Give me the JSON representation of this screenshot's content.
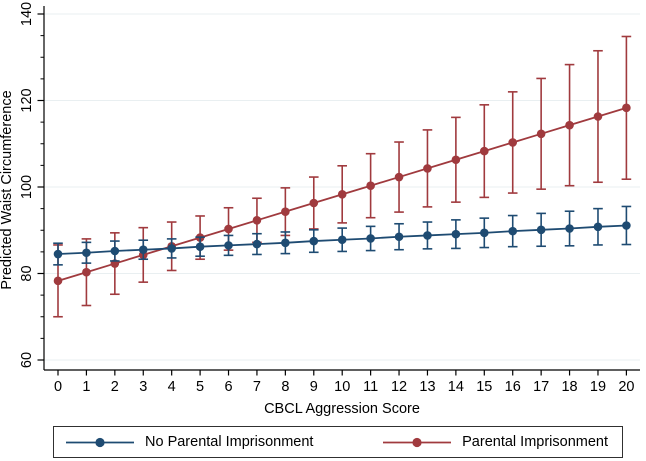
{
  "chart_data": {
    "type": "line",
    "title": "",
    "xlabel": "CBCL Aggression Score",
    "ylabel": "Predicted Waist Circumference",
    "x": [
      0,
      1,
      2,
      3,
      4,
      5,
      6,
      7,
      8,
      9,
      10,
      11,
      12,
      13,
      14,
      15,
      16,
      17,
      18,
      19,
      20
    ],
    "y_ticks": [
      60,
      80,
      100,
      120,
      140
    ],
    "y_minor_tick_step": 5,
    "ylim": [
      57.5,
      141.5
    ],
    "xlim": [
      -0.5,
      20.5
    ],
    "grid": "horizontal at major y ticks",
    "legend_position": "bottom boxed",
    "marker": "circle",
    "error_bars": "capped 95% CI",
    "series": [
      {
        "name": "No Parental Imprisonment",
        "color": "#1e4b72",
        "values": [
          84.5,
          84.8,
          85.2,
          85.5,
          85.8,
          86.2,
          86.5,
          86.8,
          87.1,
          87.5,
          87.8,
          88.1,
          88.5,
          88.8,
          89.1,
          89.4,
          89.8,
          90.1,
          90.4,
          90.8,
          91.1
        ],
        "ci_low": [
          82.0,
          82.4,
          82.9,
          83.3,
          83.6,
          84.0,
          84.2,
          84.4,
          84.6,
          84.9,
          85.1,
          85.3,
          85.5,
          85.7,
          85.8,
          86.0,
          86.2,
          86.3,
          86.4,
          86.6,
          86.7
        ],
        "ci_high": [
          87.0,
          87.2,
          87.5,
          87.7,
          88.0,
          88.4,
          88.8,
          89.2,
          89.6,
          90.1,
          90.5,
          90.9,
          91.5,
          91.9,
          92.4,
          92.8,
          93.4,
          93.9,
          94.4,
          95.0,
          95.5
        ]
      },
      {
        "name": "Parental Imprisonment",
        "color": "#a03a3e",
        "values": [
          78.3,
          80.3,
          82.3,
          84.3,
          86.3,
          88.3,
          90.3,
          92.3,
          94.3,
          96.3,
          98.3,
          100.3,
          102.3,
          104.3,
          106.3,
          108.3,
          110.3,
          112.3,
          114.3,
          116.3,
          118.3
        ],
        "ci_low": [
          70.0,
          72.6,
          75.2,
          78.0,
          80.7,
          83.3,
          85.4,
          87.2,
          88.8,
          90.3,
          91.7,
          92.9,
          94.2,
          95.4,
          96.5,
          97.6,
          98.6,
          99.5,
          100.3,
          101.1,
          101.8
        ],
        "ci_high": [
          86.6,
          88.0,
          89.4,
          90.6,
          91.9,
          93.3,
          95.2,
          97.4,
          99.8,
          102.3,
          104.9,
          107.7,
          110.4,
          113.2,
          116.1,
          119.0,
          122.0,
          125.1,
          128.3,
          131.5,
          134.8
        ]
      }
    ]
  },
  "colors": {
    "background": "#ffffff",
    "grid": "#e9eff1",
    "axis": "#000000",
    "legend_border": "#303030"
  }
}
